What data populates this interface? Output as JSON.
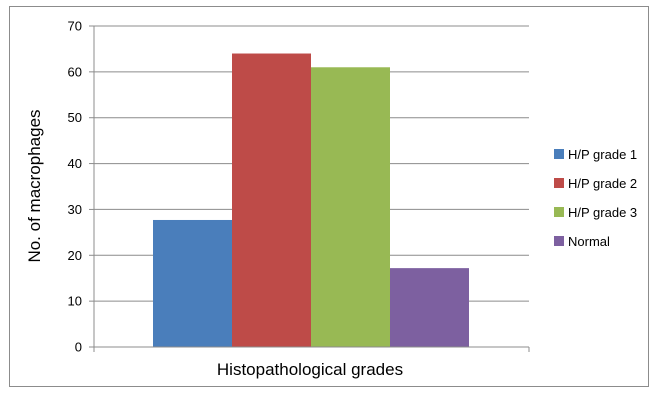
{
  "chart_data": {
    "type": "bar",
    "categories": [
      "Histopathological grades"
    ],
    "series": [
      {
        "name": "H/P grade 1",
        "values": [
          27.7
        ],
        "color": "#4a7ebb"
      },
      {
        "name": "H/P grade 2",
        "values": [
          64
        ],
        "color": "#be4b48"
      },
      {
        "name": "H/P grade 3",
        "values": [
          61
        ],
        "color": "#98b954"
      },
      {
        "name": "Normal",
        "values": [
          17.2
        ],
        "color": "#7d60a0"
      }
    ],
    "xlabel": "Histopathological grades",
    "ylabel": "No. of macrophages",
    "ylim": [
      0,
      70
    ],
    "yticks": [
      0,
      10,
      20,
      30,
      40,
      50,
      60,
      70
    ],
    "grid": true,
    "legend": "right"
  }
}
